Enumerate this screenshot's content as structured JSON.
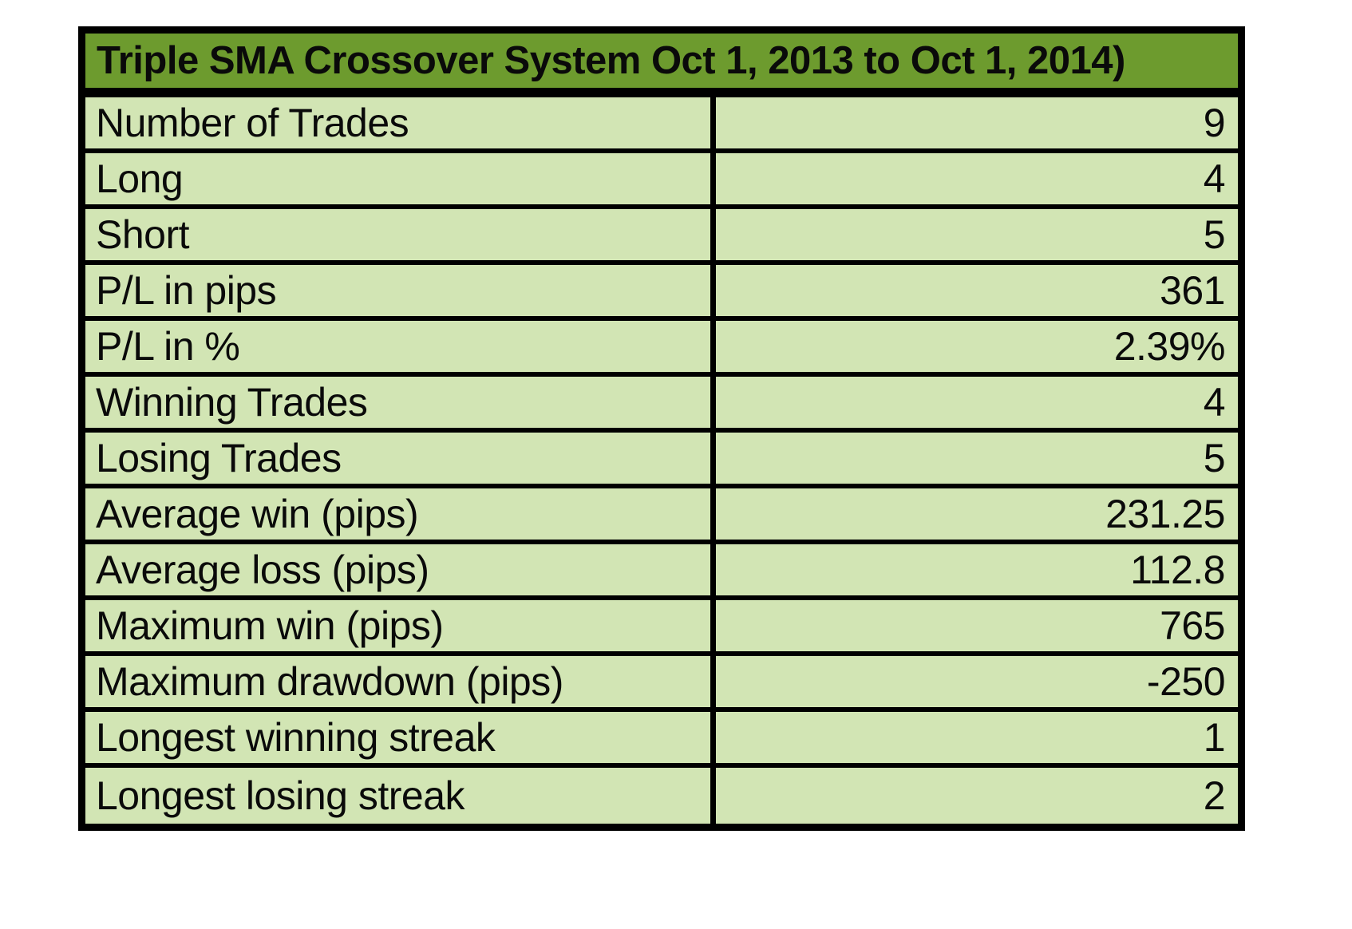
{
  "table": {
    "title": "Triple SMA Crossover System Oct 1, 2013 to Oct 1, 2014)",
    "rows": [
      {
        "label": "Number of Trades",
        "value": "9"
      },
      {
        "label": "Long",
        "value": "4"
      },
      {
        "label": "Short",
        "value": "5"
      },
      {
        "label": "P/L in pips",
        "value": "361"
      },
      {
        "label": "P/L in %",
        "value": "2.39%"
      },
      {
        "label": "Winning Trades",
        "value": "4"
      },
      {
        "label": "Losing Trades",
        "value": "5"
      },
      {
        "label": "Average win (pips)",
        "value": "231.25"
      },
      {
        "label": "Average loss (pips)",
        "value": "112.8"
      },
      {
        "label": "Maximum win (pips)",
        "value": "765"
      },
      {
        "label": "Maximum drawdown (pips)",
        "value": "-250"
      },
      {
        "label": "Longest winning streak",
        "value": "1"
      },
      {
        "label": "Longest losing streak",
        "value": "2"
      }
    ]
  },
  "colors": {
    "header_bg": "#6D9B2E",
    "row_bg": "#D2E5B4",
    "border": "#000000",
    "page_bg": "#FFFFFF",
    "text": "#0A0A0A"
  },
  "chart_data": {
    "type": "table",
    "title": "Triple SMA Crossover System Oct 1, 2013 to Oct 1, 2014)",
    "columns": [
      "Metric",
      "Value"
    ],
    "rows": [
      [
        "Number of Trades",
        9
      ],
      [
        "Long",
        4
      ],
      [
        "Short",
        5
      ],
      [
        "P/L in pips",
        361
      ],
      [
        "P/L in %",
        "2.39%"
      ],
      [
        "Winning Trades",
        4
      ],
      [
        "Losing Trades",
        5
      ],
      [
        "Average win (pips)",
        231.25
      ],
      [
        "Average loss (pips)",
        112.8
      ],
      [
        "Maximum win (pips)",
        765
      ],
      [
        "Maximum drawdown (pips)",
        -250
      ],
      [
        "Longest winning streak",
        1
      ],
      [
        "Longest losing streak",
        2
      ]
    ],
    "layout": {
      "header_style": "olive-green banner, bold",
      "body_style": "light green cells, black grid, values right-aligned"
    }
  }
}
